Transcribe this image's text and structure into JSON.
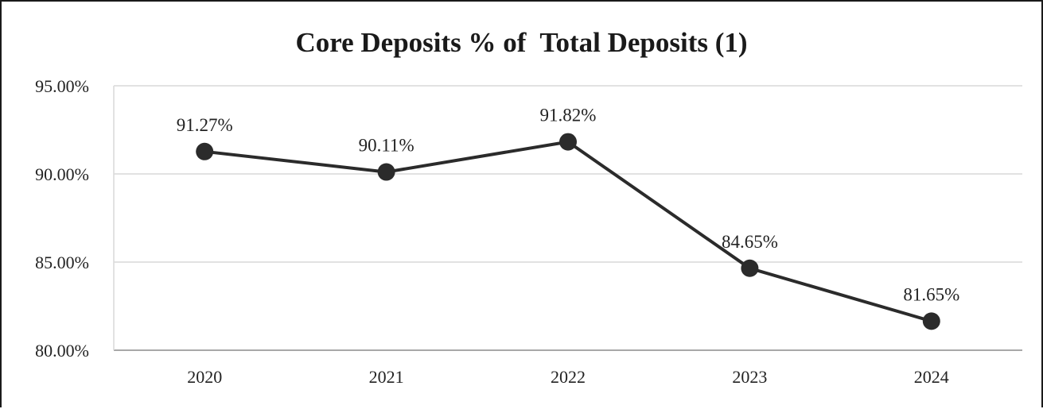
{
  "chart_data": {
    "type": "line",
    "title": "Core Deposits % of  Total Deposits (1)",
    "xlabel": "",
    "ylabel": "",
    "categories": [
      "2020",
      "2021",
      "2022",
      "2023",
      "2024"
    ],
    "series": [
      {
        "values": [
          91.27,
          90.11,
          91.82,
          84.65,
          81.65
        ],
        "data_labels": [
          "91.27%",
          "90.11%",
          "91.82%",
          "84.65%",
          "81.65%"
        ]
      }
    ],
    "ylim": [
      80,
      95
    ],
    "yticks": [
      80,
      85,
      90,
      95
    ],
    "ytick_labels": [
      "80.00%",
      "85.00%",
      "90.00%",
      "95.00%"
    ],
    "grid": true,
    "legend": "none",
    "colors": {
      "line": "#2b2b2b",
      "marker": "#2b2b2b",
      "grid": "#d9d9d9",
      "axis": "#8c8c8c",
      "border": "#1a1a1a"
    }
  }
}
